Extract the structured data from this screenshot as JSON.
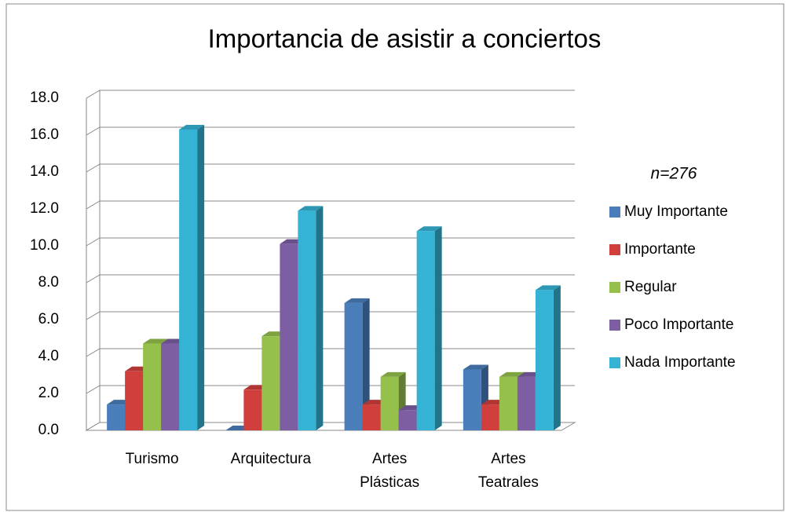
{
  "chart_data": {
    "type": "bar3d",
    "title": "Importancia de asistir a conciertos",
    "annotation": "n=276",
    "categories": [
      "Turismo",
      "Arquitectura",
      "Artes Plásticas",
      "Artes Teatrales"
    ],
    "series": [
      {
        "name": "Muy Importante",
        "color": "#4a7ebb",
        "values": [
          1.4,
          0,
          6.9,
          3.3
        ]
      },
      {
        "name": "Importante",
        "color": "#d03f3c",
        "values": [
          3.2,
          2.2,
          1.4,
          1.4
        ]
      },
      {
        "name": "Regular",
        "color": "#94c04b",
        "values": [
          4.7,
          5.1,
          2.9,
          2.9
        ]
      },
      {
        "name": "Poco Importante",
        "color": "#7d5ea3",
        "values": [
          4.7,
          10.1,
          1.1,
          2.9
        ]
      },
      {
        "name": "Nada Importante",
        "color": "#34b3d4",
        "values": [
          16.3,
          11.9,
          10.8,
          7.6
        ]
      }
    ],
    "ylim": [
      0,
      18
    ],
    "yticks": [
      {
        "value": 0,
        "label": "0.0"
      },
      {
        "value": 2,
        "label": "2.0"
      },
      {
        "value": 4,
        "label": "4.0"
      },
      {
        "value": 6,
        "label": "6.0"
      },
      {
        "value": 8,
        "label": "8.0"
      },
      {
        "value": 10,
        "label": "10.0"
      },
      {
        "value": 12,
        "label": "12.0"
      },
      {
        "value": 14,
        "label": "14.0"
      },
      {
        "value": 16,
        "label": "16.0"
      },
      {
        "value": 18,
        "label": "18.0"
      }
    ],
    "grid": true,
    "legend": "right"
  }
}
